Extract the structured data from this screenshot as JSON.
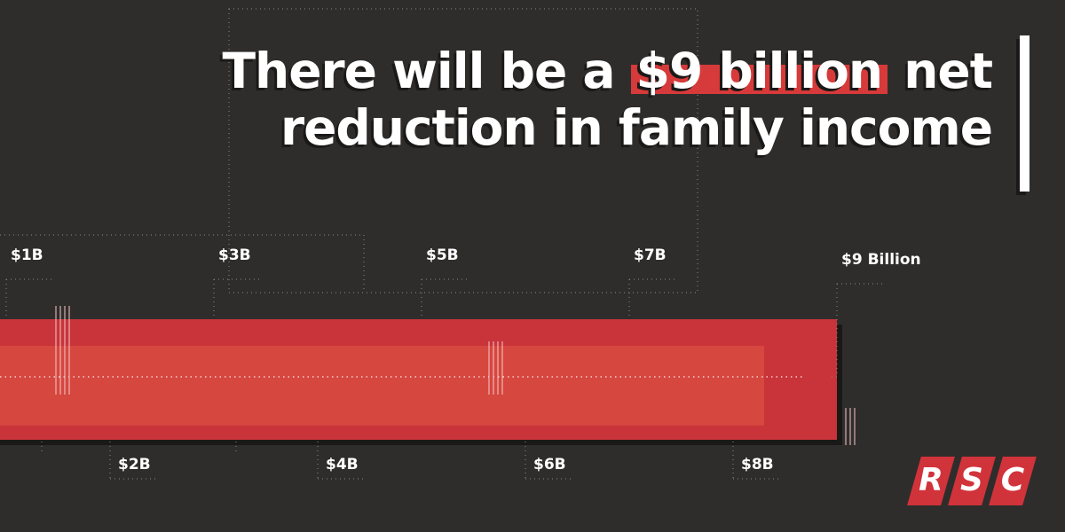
{
  "headline": {
    "before": "There will be a ",
    "highlight": "$9 billion",
    "after_line1": " net",
    "line2": "reduction in family income"
  },
  "logo": {
    "letters": [
      "R",
      "S",
      "C"
    ],
    "color": "#d1333b"
  },
  "colors": {
    "background": "#2f2d2c",
    "bar_outer": "#c9333a",
    "bar_inner": "#d6473f",
    "bar_shadow": "#1a1918",
    "text": "#ffffff",
    "highlight": "#d63a3a"
  },
  "chart_data": {
    "type": "bar",
    "orientation": "horizontal",
    "axis_range": [
      0,
      9
    ],
    "unit": "billion dollars",
    "value": 9,
    "value_label": "$9 Billion",
    "inner_band_value": 8.3,
    "ticks": [
      {
        "value": 1,
        "label": "$1B",
        "side": "top"
      },
      {
        "value": 2,
        "label": "$2B",
        "side": "bottom"
      },
      {
        "value": 3,
        "label": "$3B",
        "side": "top"
      },
      {
        "value": 4,
        "label": "$4B",
        "side": "bottom"
      },
      {
        "value": 5,
        "label": "$5B",
        "side": "top"
      },
      {
        "value": 6,
        "label": "$6B",
        "side": "bottom"
      },
      {
        "value": 7,
        "label": "$7B",
        "side": "top"
      },
      {
        "value": 8,
        "label": "$8B",
        "side": "bottom"
      },
      {
        "value": 9,
        "label": "$9 Billion",
        "side": "top"
      }
    ]
  }
}
